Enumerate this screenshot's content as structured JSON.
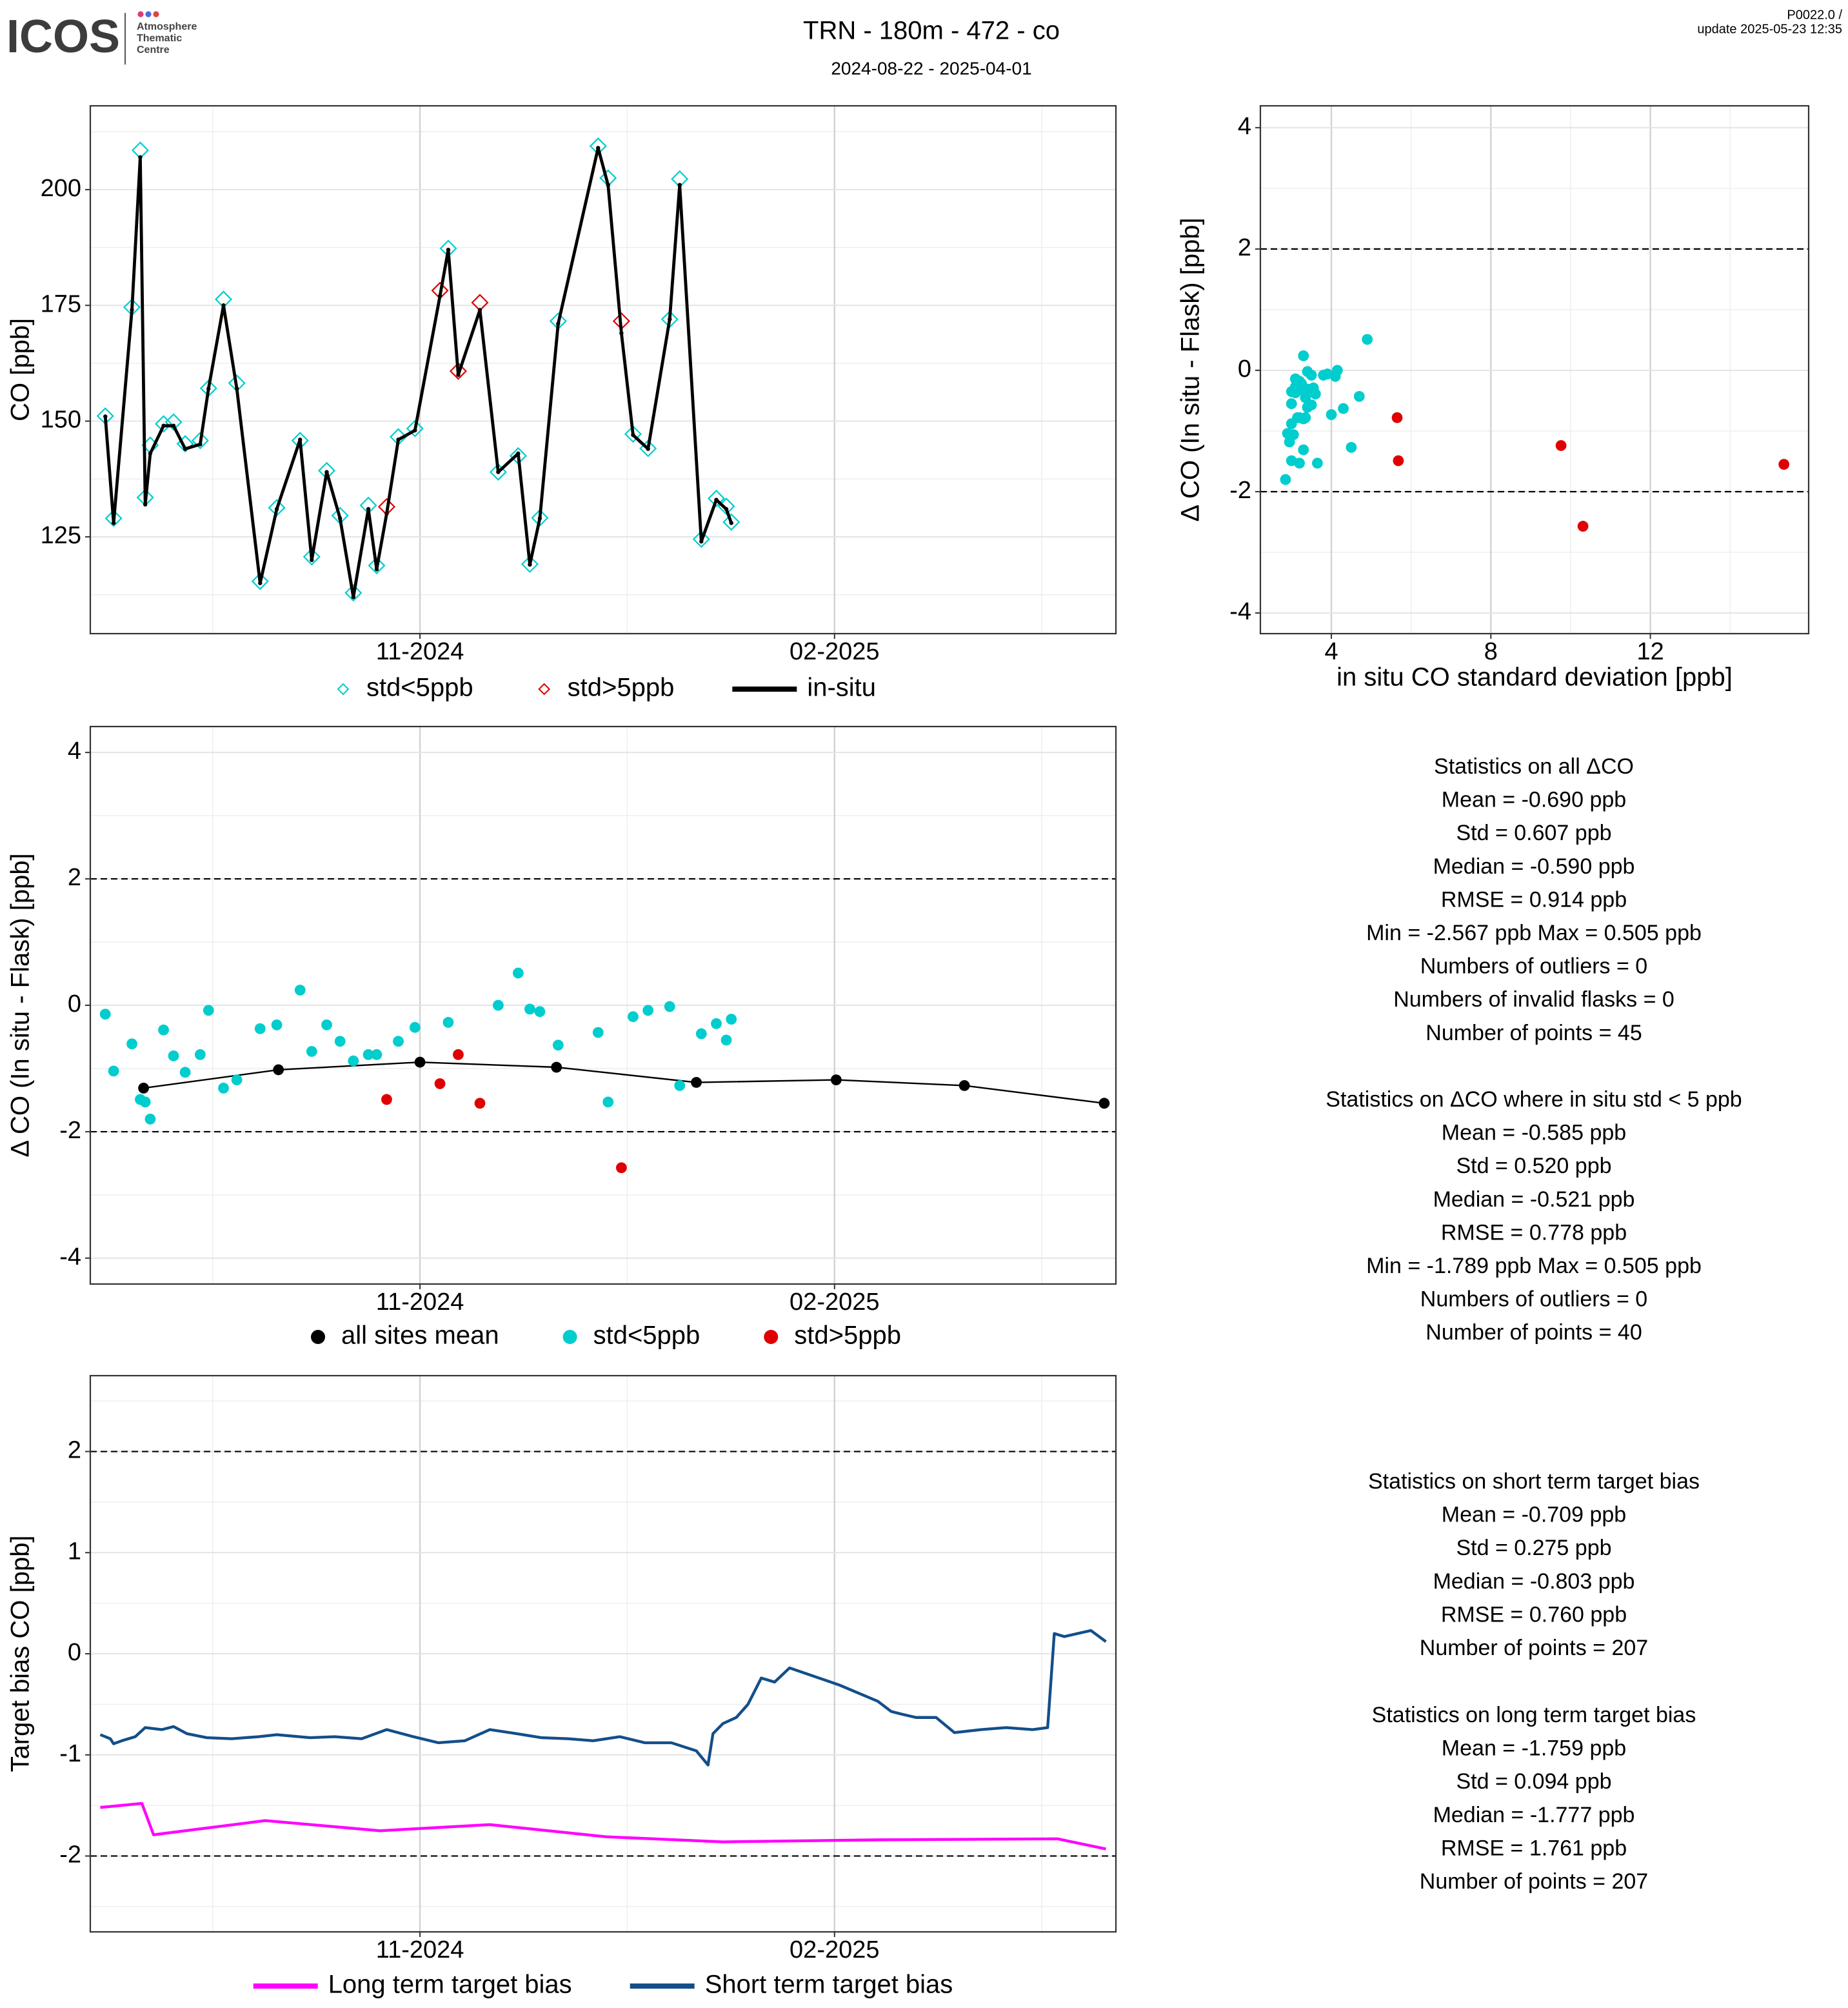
{
  "header": {
    "logo": "ICOS",
    "logo_sub": [
      "Atmosphere",
      "Thematic",
      "Centre"
    ],
    "title": "TRN - 180m - 472 - co",
    "subtitle": "2024-08-22 - 2025-04-01",
    "version": "P0022.0 /",
    "update": "update  2025-05-23 12:35"
  },
  "chart_data": [
    {
      "type": "line",
      "ylabel": "CO [ppb]",
      "xlim": [
        2024.638,
        2025.254
      ],
      "ylim": [
        104.1,
        218.1
      ],
      "xticks": [
        {
          "value": 2024.836,
          "label": "11-2024"
        },
        {
          "value": 2025.085,
          "label": "02-2025"
        }
      ],
      "yticks": [
        125,
        150,
        175,
        200
      ],
      "grid": true,
      "x": [
        2024.647,
        2024.652,
        2024.663,
        2024.668,
        2024.671,
        2024.674,
        2024.682,
        2024.688,
        2024.695,
        2024.704,
        2024.709,
        2024.718,
        2024.726,
        2024.74,
        2024.75,
        2024.764,
        2024.771,
        2024.78,
        2024.788,
        2024.796,
        2024.805,
        2024.81,
        2024.816,
        2024.823,
        2024.833,
        2024.848,
        2024.853,
        2024.859,
        2024.872,
        2024.883,
        2024.895,
        2024.902,
        2024.908,
        2024.919,
        2024.943,
        2024.949,
        2024.957,
        2024.964,
        2024.973,
        2024.986,
        2024.992,
        2025.005,
        2025.014,
        2025.02,
        2025.023
      ],
      "series": [
        {
          "name": "std<5ppb",
          "marker": "diamond",
          "color": "#00cdcd",
          "values": [
            151.1,
            129.0,
            174.6,
            208.5,
            133.5,
            144.8,
            149.4,
            149.8,
            145.1,
            145.8,
            157.1,
            176.3,
            158.2,
            115.4,
            131.3,
            145.8,
            120.7,
            139.3,
            129.6,
            112.9,
            131.8,
            118.8,
            null,
            146.6,
            148.4,
            null,
            187.3,
            null,
            null,
            139.0,
            142.5,
            119.1,
            129.1,
            171.6,
            209.4,
            202.5,
            null,
            147.2,
            144.1,
            172.0,
            202.3,
            124.5,
            133.3,
            131.6,
            128.2
          ]
        },
        {
          "name": "std>5ppb",
          "marker": "diamond",
          "color": "#e00000",
          "values": [
            null,
            null,
            null,
            null,
            null,
            null,
            null,
            null,
            null,
            null,
            null,
            null,
            null,
            null,
            null,
            null,
            null,
            null,
            null,
            null,
            null,
            null,
            131.5,
            null,
            null,
            178.2,
            null,
            160.8,
            175.6,
            null,
            null,
            null,
            null,
            null,
            null,
            null,
            171.6,
            null,
            null,
            null,
            null,
            null,
            null,
            null,
            null
          ]
        },
        {
          "name": "in-situ",
          "marker": "line-dot",
          "color": "#000000",
          "values": [
            151,
            128,
            174,
            207,
            132,
            143,
            149,
            149,
            144,
            145,
            157,
            175,
            157,
            115,
            131,
            146,
            120,
            139,
            129,
            112,
            131,
            118,
            130,
            146,
            148,
            177,
            187,
            160,
            174,
            139,
            143,
            119,
            129,
            171,
            209,
            201,
            169,
            147,
            144,
            172,
            201,
            124,
            133,
            131,
            128
          ]
        }
      ]
    },
    {
      "type": "scatter",
      "xlabel": "in situ CO standard deviation [ppb]",
      "ylabel": "Δ CO (In situ - Flask) [ppb]",
      "xlim": [
        2.22,
        15.97
      ],
      "ylim": [
        -4.34,
        4.36
      ],
      "xticks": [
        4,
        8,
        12
      ],
      "yticks": [
        -4,
        -2,
        0,
        2,
        4
      ],
      "hlines": [
        2,
        -2
      ],
      "grid": true,
      "series": [
        {
          "marker": "dot",
          "color": "#00cdcd",
          "x": [
            3.1,
            2.9,
            3.4,
            3.0,
            3.2,
            2.85,
            3.6,
            3.3,
            3.05,
            3.2,
            3.8,
            3.3,
            2.95,
            3.1,
            3.4,
            3.3,
            4.0,
            3.25,
            3.5,
            3.0,
            3.35,
            3.15,
            3.45,
            3.0,
            3.1,
            4.15,
            4.9,
            3.9,
            4.1,
            4.3,
            4.7,
            3.65,
            3.2,
            3.5,
            3.4,
            4.5,
            3.35,
            3.55,
            3.0,
            3.25
          ],
          "values": [
            -0.14,
            -1.04,
            -0.61,
            -1.49,
            -1.53,
            -1.8,
            -0.39,
            -0.8,
            -1.06,
            -0.78,
            -0.08,
            -1.31,
            -1.18,
            -0.37,
            -0.31,
            0.24,
            -0.73,
            -0.31,
            -0.57,
            -0.88,
            -0.78,
            -0.78,
            -0.57,
            -0.35,
            -0.27,
            0.0,
            0.51,
            -0.06,
            -0.1,
            -0.63,
            -0.43,
            -1.53,
            -0.18,
            -0.08,
            -0.02,
            -1.27,
            -0.45,
            -0.29,
            -0.55,
            -0.22
          ]
        },
        {
          "marker": "dot",
          "color": "#e00000",
          "x": [
            5.68,
            9.76,
            5.65,
            15.35,
            10.31
          ],
          "values": [
            -1.49,
            -1.24,
            -0.78,
            -1.55,
            -2.57
          ]
        }
      ]
    },
    {
      "type": "scatter",
      "ylabel": "Δ CO (In situ - Flask) [ppb]",
      "xlim": [
        2024.638,
        2025.254
      ],
      "ylim": [
        -4.41,
        4.41
      ],
      "xticks": [
        {
          "value": 2024.836,
          "label": "11-2024"
        },
        {
          "value": 2025.085,
          "label": "02-2025"
        }
      ],
      "yticks": [
        -4,
        -2,
        0,
        2,
        4
      ],
      "hlines": [
        2,
        -2
      ],
      "grid": true,
      "x": [
        2024.647,
        2024.652,
        2024.663,
        2024.668,
        2024.671,
        2024.674,
        2024.682,
        2024.688,
        2024.695,
        2024.704,
        2024.709,
        2024.718,
        2024.726,
        2024.74,
        2024.75,
        2024.764,
        2024.771,
        2024.78,
        2024.788,
        2024.796,
        2024.805,
        2024.81,
        2024.816,
        2024.823,
        2024.833,
        2024.848,
        2024.853,
        2024.859,
        2024.872,
        2024.883,
        2024.895,
        2024.902,
        2024.908,
        2024.919,
        2024.943,
        2024.949,
        2024.957,
        2024.964,
        2024.973,
        2024.986,
        2024.992,
        2025.005,
        2025.014,
        2025.02,
        2025.023
      ],
      "series": [
        {
          "name": "all sites mean",
          "marker": "line-dot",
          "color": "#000000",
          "x": [
            2024.67,
            2024.751,
            2024.836,
            2024.918,
            2025.002,
            2025.086,
            2025.163,
            2025.247
          ],
          "values": [
            -1.31,
            -1.02,
            -0.9,
            -0.98,
            -1.22,
            -1.18,
            -1.27,
            -1.55
          ]
        },
        {
          "name": "std<5ppb",
          "marker": "dot",
          "color": "#00cdcd",
          "values": [
            -0.14,
            -1.04,
            -0.61,
            -1.49,
            -1.53,
            -1.8,
            -0.39,
            -0.8,
            -1.06,
            -0.78,
            -0.08,
            -1.31,
            -1.18,
            -0.37,
            -0.31,
            0.24,
            -0.73,
            -0.31,
            -0.57,
            -0.88,
            -0.78,
            -0.78,
            null,
            -0.57,
            -0.35,
            null,
            -0.27,
            null,
            null,
            0.0,
            0.51,
            -0.06,
            -0.1,
            -0.63,
            -0.43,
            -1.53,
            null,
            -0.18,
            -0.08,
            -0.02,
            -1.27,
            -0.45,
            -0.29,
            -0.55,
            -0.22
          ]
        },
        {
          "name": "std>5ppb",
          "marker": "dot",
          "color": "#e00000",
          "values": [
            null,
            null,
            null,
            null,
            null,
            null,
            null,
            null,
            null,
            null,
            null,
            null,
            null,
            null,
            null,
            null,
            null,
            null,
            null,
            null,
            null,
            null,
            -1.49,
            null,
            null,
            -1.24,
            null,
            -0.78,
            -1.55,
            null,
            null,
            null,
            null,
            null,
            null,
            null,
            -2.57,
            null,
            null,
            null,
            null,
            null,
            null,
            null,
            null
          ]
        }
      ]
    },
    {
      "type": "line",
      "ylabel": "Target bias CO [ppb]",
      "xlim": [
        2024.638,
        2025.254
      ],
      "ylim": [
        -2.75,
        2.75
      ],
      "xticks": [
        {
          "value": 2024.836,
          "label": "11-2024"
        },
        {
          "value": 2025.085,
          "label": "02-2025"
        }
      ],
      "yticks": [
        -2,
        -1,
        0,
        1,
        2
      ],
      "hlines": [
        2,
        -2
      ],
      "grid": true,
      "series": [
        {
          "name": "Long term target bias",
          "marker": "line",
          "color": "#ff00ff",
          "x": [
            2024.644,
            2024.669,
            2024.676,
            2024.743,
            2024.812,
            2024.878,
            2024.948,
            2025.018,
            2025.111,
            2025.219,
            2025.248
          ],
          "values": [
            -1.52,
            -1.48,
            -1.79,
            -1.65,
            -1.75,
            -1.69,
            -1.81,
            -1.86,
            -1.84,
            -1.83,
            -1.93
          ]
        },
        {
          "name": "Short term target bias",
          "marker": "line",
          "color": "#134e8a",
          "x": [
            2024.644,
            2024.65,
            2024.652,
            2024.657,
            2024.665,
            2024.671,
            2024.681,
            2024.688,
            2024.696,
            2024.708,
            2024.723,
            2024.739,
            2024.75,
            2024.77,
            2024.785,
            2024.801,
            2024.816,
            2024.832,
            2024.847,
            2024.863,
            2024.878,
            2024.894,
            2024.909,
            2024.925,
            2024.94,
            2024.956,
            2024.971,
            2024.987,
            2025.002,
            2025.009,
            2025.012,
            2025.018,
            2025.026,
            2025.033,
            2025.041,
            2025.049,
            2025.058,
            2025.088,
            2025.111,
            2025.119,
            2025.126,
            2025.134,
            2025.146,
            2025.157,
            2025.173,
            2025.188,
            2025.204,
            2025.213,
            2025.217,
            2025.223,
            2025.231,
            2025.239,
            2025.248
          ],
          "values": [
            -0.8,
            -0.84,
            -0.89,
            -0.86,
            -0.82,
            -0.73,
            -0.75,
            -0.72,
            -0.79,
            -0.83,
            -0.84,
            -0.82,
            -0.8,
            -0.83,
            -0.82,
            -0.84,
            -0.75,
            -0.82,
            -0.88,
            -0.86,
            -0.75,
            -0.79,
            -0.83,
            -0.84,
            -0.86,
            -0.82,
            -0.88,
            -0.88,
            -0.96,
            -1.1,
            -0.79,
            -0.69,
            -0.63,
            -0.5,
            -0.24,
            -0.28,
            -0.14,
            -0.31,
            -0.47,
            -0.57,
            -0.6,
            -0.63,
            -0.63,
            -0.78,
            -0.75,
            -0.73,
            -0.75,
            -0.73,
            0.2,
            0.17,
            0.2,
            0.23,
            0.12
          ]
        }
      ]
    }
  ],
  "stats": [
    {
      "title": "Statistics on all ΔCO",
      "lines": [
        "Mean =  -0.690 ppb",
        "Std =  0.607 ppb",
        "Median =  -0.590 ppb",
        "RMSE =  0.914 ppb",
        "Min =  -2.567 ppb Max =  0.505 ppb",
        "Numbers of outliers =  0",
        "Numbers of invalid flasks =  0",
        "Number of points =  45"
      ]
    },
    {
      "title": "Statistics on ΔCO where in situ std < 5 ppb",
      "lines": [
        "Mean =  -0.585 ppb",
        "Std =  0.520 ppb",
        "Median =  -0.521 ppb",
        "RMSE =  0.778 ppb",
        "Min =  -1.789 ppb Max =  0.505 ppb",
        "Numbers of outliers =  0",
        "Number of points =  40"
      ]
    },
    {
      "title": "Statistics on short term target bias",
      "lines": [
        "Mean =  -0.709 ppb",
        "Std =  0.275 ppb",
        "Median =  -0.803 ppb",
        "RMSE =  0.760 ppb",
        "Number of points =  207"
      ]
    },
    {
      "title": "Statistics on long term target bias",
      "lines": [
        "Mean =  -1.759 ppb",
        "Std =  0.094 ppb",
        "Median =  -1.777 ppb",
        "RMSE =  1.761 ppb",
        "Number of points =  207"
      ]
    }
  ]
}
